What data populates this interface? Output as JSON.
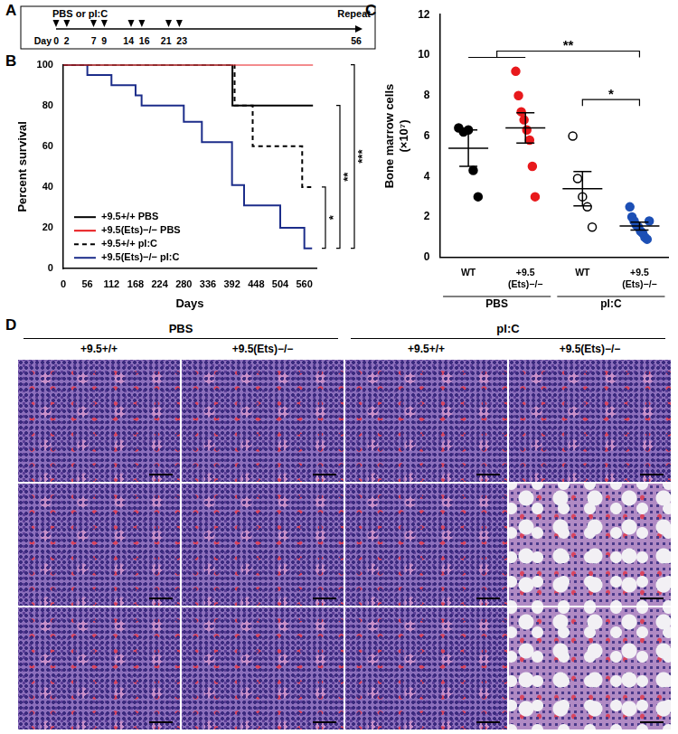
{
  "panel_labels": [
    "A",
    "B",
    "C",
    "D"
  ],
  "schedule": {
    "top_label": "PBS or pI:C",
    "end_label": "Repeat",
    "day_label": "Day",
    "injection_days": [
      0,
      2,
      7,
      9,
      14,
      16,
      21,
      23
    ],
    "end_day": 56
  },
  "chart_data": [
    {
      "type": "line",
      "xlabel": "Days",
      "ylabel": "Percent survival",
      "xlim": [
        0,
        588
      ],
      "xticks": [
        0,
        56,
        112,
        168,
        224,
        280,
        336,
        392,
        448,
        504,
        560
      ],
      "ylim": [
        0,
        100
      ],
      "yticks": [
        0,
        20,
        40,
        60,
        80,
        100
      ],
      "grid": false,
      "legend": "lower left",
      "series": [
        {
          "name": "+9.5+/+ PBS",
          "color": "#000000",
          "line_style": "solid",
          "x": [
            0,
            393,
            580
          ],
          "values": [
            100,
            80,
            80
          ]
        },
        {
          "name": "+9.5(Ets)−/− PBS",
          "color": "#e8191c",
          "line_style": "solid",
          "x": [
            0,
            580
          ],
          "values": [
            100,
            100
          ]
        },
        {
          "name": "+9.5+/+ pI:C",
          "color": "#000000",
          "line_style": "dashed",
          "x": [
            0,
            398,
            440,
            555,
            576
          ],
          "values": [
            100,
            80,
            60,
            40,
            40
          ]
        },
        {
          "name": "+9.5(Ets)−/− pI:C",
          "color": "#1c2d8a",
          "line_style": "solid",
          "x": [
            0,
            56,
            112,
            168,
            182,
            280,
            322,
            392,
            420,
            504,
            560,
            578
          ],
          "values": [
            100,
            95,
            90,
            85,
            80,
            72,
            62,
            41,
            31,
            20,
            10,
            10
          ]
        }
      ],
      "annotations": [
        {
          "label": "*",
          "y": [
            40,
            10
          ]
        },
        {
          "label": "**",
          "y": [
            80,
            10
          ]
        },
        {
          "label": "***",
          "y": [
            100,
            10
          ]
        }
      ]
    },
    {
      "type": "scatter",
      "ylabel": [
        "Bone marrow cells",
        "(×10⁷)"
      ],
      "categories": [
        "WT",
        "+9.5(Ets)−/−",
        "WT",
        "+9.5(Ets)−/−"
      ],
      "groups": [
        {
          "label": "PBS",
          "categories": [
            0,
            1
          ]
        },
        {
          "label": "pI:C",
          "categories": [
            2,
            3
          ]
        }
      ],
      "ylim": [
        0,
        12
      ],
      "yticks": [
        0,
        2,
        4,
        6,
        8,
        10,
        12
      ],
      "grid": false,
      "values": [
        [
          6.4,
          6.2,
          6.3,
          4.3,
          3.0
        ],
        [
          9.2,
          8.0,
          7.2,
          6.8,
          6.3,
          5.8,
          4.5,
          3.0
        ],
        [
          6.0,
          3.9,
          3.0,
          2.5,
          1.5
        ],
        [
          2.5,
          2.0,
          1.8,
          1.6,
          1.5,
          1.3,
          1.2,
          1.0,
          0.9,
          1.8
        ]
      ],
      "mean": [
        5.4,
        6.4,
        3.4,
        1.55
      ],
      "sem": [
        0.9,
        0.75,
        0.85,
        0.2
      ],
      "colors": [
        "#000000",
        "#e8191c",
        "#000000",
        "#1c4fb5"
      ],
      "marker": [
        "circle",
        "circle",
        "open circle",
        "circle"
      ],
      "annotations": [
        {
          "label": "**",
          "between": [
            [
              0,
              1
            ],
            [
              3
            ]
          ],
          "y": 10.2
        },
        {
          "label": "*",
          "between": [
            [
              2
            ],
            [
              3
            ]
          ],
          "y": 7.8
        }
      ]
    }
  ],
  "histology": {
    "groups": [
      {
        "label": "PBS",
        "columns": [
          "+9.5+/+",
          "+9.5(Ets)−/−"
        ]
      },
      {
        "label": "pI:C",
        "columns": [
          "+9.5+/+",
          "+9.5(Ets)−/−"
        ]
      }
    ],
    "rows": 3
  }
}
